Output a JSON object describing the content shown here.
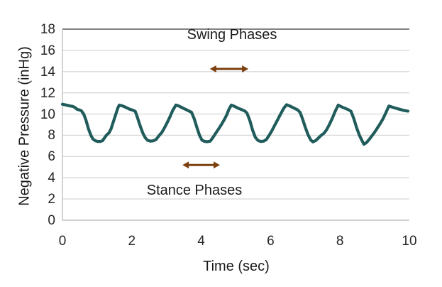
{
  "chart_data": {
    "type": "line",
    "title": "",
    "xlabel": "Time (sec)",
    "ylabel": "Negative Pressure (inHg)",
    "xlim": [
      0,
      10
    ],
    "ylim": [
      0,
      18
    ],
    "x_ticks": [
      0,
      2,
      4,
      6,
      8,
      10
    ],
    "y_ticks": [
      0,
      2,
      4,
      6,
      8,
      10,
      12,
      14,
      16,
      18
    ],
    "grid": "horizontal",
    "legend": "none",
    "colors": {
      "line": "#1f5c5b",
      "gridline": "#d9d9d9",
      "plot_top_border": "#595959",
      "axis_line": "#bfbfbf",
      "text": "#262626",
      "arrow": "#7b400f"
    },
    "annotations": [
      {
        "label": "Swing Phases",
        "label_x": 4.9,
        "label_y": 17.3,
        "arrow": {
          "x1": 4.25,
          "x2": 5.36,
          "y": 14.25
        }
      },
      {
        "label": "Stance Phases",
        "label_x": 3.8,
        "label_y": 2.6,
        "arrow": {
          "x1": 3.46,
          "x2": 4.54,
          "y": 5.2
        }
      }
    ],
    "series": [
      {
        "name": "Negative Pressure",
        "points": [
          [
            0.0,
            10.93
          ],
          [
            0.07,
            10.88
          ],
          [
            0.15,
            10.82
          ],
          [
            0.22,
            10.76
          ],
          [
            0.3,
            10.72
          ],
          [
            0.37,
            10.6
          ],
          [
            0.42,
            10.45
          ],
          [
            0.48,
            10.4
          ],
          [
            0.55,
            10.3
          ],
          [
            0.62,
            9.95
          ],
          [
            0.68,
            9.4
          ],
          [
            0.75,
            8.6
          ],
          [
            0.82,
            8.0
          ],
          [
            0.88,
            7.65
          ],
          [
            0.95,
            7.48
          ],
          [
            1.02,
            7.42
          ],
          [
            1.1,
            7.42
          ],
          [
            1.16,
            7.5
          ],
          [
            1.22,
            7.8
          ],
          [
            1.28,
            8.05
          ],
          [
            1.34,
            8.22
          ],
          [
            1.4,
            8.6
          ],
          [
            1.47,
            9.3
          ],
          [
            1.54,
            10.0
          ],
          [
            1.6,
            10.6
          ],
          [
            1.64,
            10.85
          ],
          [
            1.7,
            10.8
          ],
          [
            1.78,
            10.7
          ],
          [
            1.86,
            10.58
          ],
          [
            1.94,
            10.45
          ],
          [
            2.02,
            10.38
          ],
          [
            2.1,
            10.25
          ],
          [
            2.16,
            9.7
          ],
          [
            2.24,
            8.9
          ],
          [
            2.32,
            8.2
          ],
          [
            2.39,
            7.75
          ],
          [
            2.46,
            7.52
          ],
          [
            2.54,
            7.45
          ],
          [
            2.62,
            7.48
          ],
          [
            2.7,
            7.6
          ],
          [
            2.78,
            7.95
          ],
          [
            2.86,
            8.25
          ],
          [
            2.94,
            8.7
          ],
          [
            3.02,
            9.2
          ],
          [
            3.1,
            9.75
          ],
          [
            3.18,
            10.35
          ],
          [
            3.27,
            10.85
          ],
          [
            3.34,
            10.78
          ],
          [
            3.42,
            10.65
          ],
          [
            3.5,
            10.52
          ],
          [
            3.58,
            10.4
          ],
          [
            3.65,
            10.28
          ],
          [
            3.72,
            10.18
          ],
          [
            3.8,
            9.55
          ],
          [
            3.88,
            8.7
          ],
          [
            3.95,
            8.0
          ],
          [
            4.02,
            7.55
          ],
          [
            4.1,
            7.42
          ],
          [
            4.18,
            7.4
          ],
          [
            4.26,
            7.45
          ],
          [
            4.34,
            7.8
          ],
          [
            4.42,
            8.2
          ],
          [
            4.5,
            8.6
          ],
          [
            4.58,
            9.0
          ],
          [
            4.66,
            9.45
          ],
          [
            4.74,
            9.95
          ],
          [
            4.8,
            10.45
          ],
          [
            4.87,
            10.85
          ],
          [
            4.94,
            10.75
          ],
          [
            5.02,
            10.62
          ],
          [
            5.1,
            10.5
          ],
          [
            5.18,
            10.4
          ],
          [
            5.26,
            10.28
          ],
          [
            5.32,
            10.1
          ],
          [
            5.4,
            9.4
          ],
          [
            5.48,
            8.5
          ],
          [
            5.56,
            7.8
          ],
          [
            5.64,
            7.5
          ],
          [
            5.72,
            7.42
          ],
          [
            5.8,
            7.45
          ],
          [
            5.88,
            7.6
          ],
          [
            5.96,
            8.0
          ],
          [
            6.04,
            8.45
          ],
          [
            6.12,
            8.95
          ],
          [
            6.2,
            9.45
          ],
          [
            6.28,
            9.95
          ],
          [
            6.38,
            10.55
          ],
          [
            6.46,
            10.88
          ],
          [
            6.54,
            10.78
          ],
          [
            6.62,
            10.65
          ],
          [
            6.7,
            10.52
          ],
          [
            6.78,
            10.4
          ],
          [
            6.85,
            10.15
          ],
          [
            6.92,
            9.55
          ],
          [
            7.0,
            8.75
          ],
          [
            7.08,
            8.05
          ],
          [
            7.16,
            7.55
          ],
          [
            7.22,
            7.38
          ],
          [
            7.3,
            7.5
          ],
          [
            7.38,
            7.75
          ],
          [
            7.46,
            8.0
          ],
          [
            7.54,
            8.2
          ],
          [
            7.62,
            8.55
          ],
          [
            7.7,
            9.05
          ],
          [
            7.78,
            9.6
          ],
          [
            7.86,
            10.25
          ],
          [
            7.95,
            10.85
          ],
          [
            8.02,
            10.72
          ],
          [
            8.1,
            10.6
          ],
          [
            8.18,
            10.5
          ],
          [
            8.26,
            10.38
          ],
          [
            8.32,
            10.25
          ],
          [
            8.4,
            9.55
          ],
          [
            8.48,
            8.7
          ],
          [
            8.56,
            8.0
          ],
          [
            8.62,
            7.6
          ],
          [
            8.69,
            7.15
          ],
          [
            8.76,
            7.3
          ],
          [
            8.84,
            7.6
          ],
          [
            8.92,
            7.95
          ],
          [
            9.0,
            8.3
          ],
          [
            9.08,
            8.7
          ],
          [
            9.16,
            9.1
          ],
          [
            9.24,
            9.55
          ],
          [
            9.32,
            10.1
          ],
          [
            9.41,
            10.75
          ],
          [
            9.48,
            10.68
          ],
          [
            9.56,
            10.6
          ],
          [
            9.64,
            10.52
          ],
          [
            9.72,
            10.45
          ],
          [
            9.8,
            10.38
          ],
          [
            9.88,
            10.32
          ],
          [
            9.96,
            10.28
          ]
        ]
      }
    ]
  }
}
